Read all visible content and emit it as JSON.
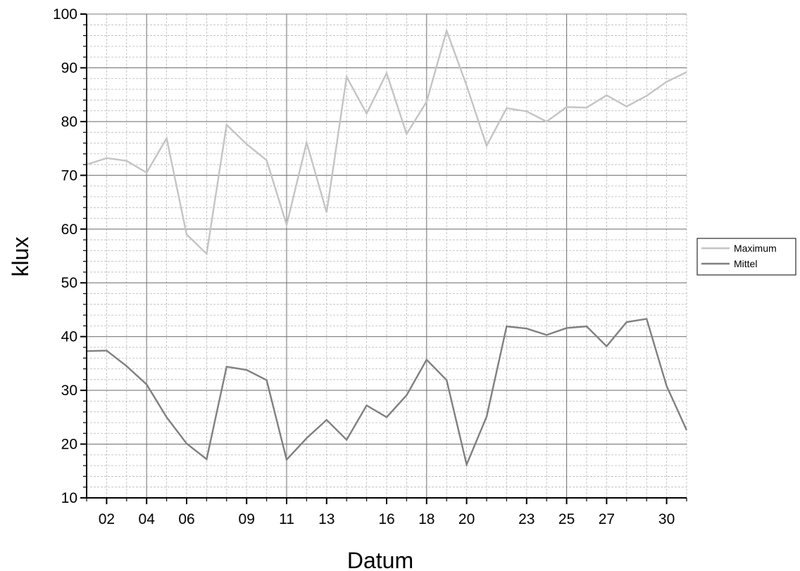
{
  "chart_data": {
    "type": "line",
    "xlabel": "Datum",
    "ylabel": "klux",
    "ylim": [
      10,
      100
    ],
    "yticks": [
      10,
      20,
      30,
      40,
      50,
      60,
      70,
      80,
      90,
      100
    ],
    "xlim": [
      1,
      31
    ],
    "xtick_labels": [
      {
        "x": 2,
        "label": "02"
      },
      {
        "x": 4,
        "label": "04"
      },
      {
        "x": 6,
        "label": "06"
      },
      {
        "x": 9,
        "label": "09"
      },
      {
        "x": 11,
        "label": "11"
      },
      {
        "x": 13,
        "label": "13"
      },
      {
        "x": 16,
        "label": "16"
      },
      {
        "x": 18,
        "label": "18"
      },
      {
        "x": 20,
        "label": "20"
      },
      {
        "x": 23,
        "label": "23"
      },
      {
        "x": 25,
        "label": "25"
      },
      {
        "x": 27,
        "label": "27"
      },
      {
        "x": 30,
        "label": "30"
      }
    ],
    "major_grid_x": [
      4,
      11,
      18,
      25
    ],
    "grid": true,
    "legend_position": "right",
    "x": [
      1,
      2,
      3,
      4,
      5,
      6,
      7,
      8,
      9,
      10,
      11,
      12,
      13,
      14,
      15,
      16,
      17,
      18,
      19,
      20,
      21,
      22,
      23,
      24,
      25,
      26,
      27,
      28,
      29,
      30,
      31
    ],
    "series": [
      {
        "name": "Maximum",
        "color": "#c4c4c4",
        "values": [
          72.0,
          73.2,
          72.7,
          70.5,
          76.9,
          59.0,
          55.4,
          79.4,
          75.8,
          72.8,
          60.8,
          76.1,
          63.1,
          88.3,
          81.5,
          89.0,
          77.7,
          83.7,
          96.9,
          86.7,
          75.5,
          82.5,
          81.9,
          80.0,
          82.7,
          82.6,
          84.9,
          82.8,
          84.8,
          87.4,
          89.2
        ]
      },
      {
        "name": "Mittel",
        "color": "#808080",
        "values": [
          37.3,
          37.4,
          34.5,
          31.1,
          25.0,
          20.1,
          17.2,
          34.4,
          33.8,
          31.9,
          17.1,
          21.1,
          24.5,
          20.8,
          27.2,
          25.0,
          29.1,
          35.7,
          31.9,
          16.2,
          25.1,
          41.9,
          41.5,
          40.3,
          41.6,
          41.9,
          38.2,
          42.7,
          43.3,
          30.8,
          22.6
        ]
      }
    ]
  }
}
